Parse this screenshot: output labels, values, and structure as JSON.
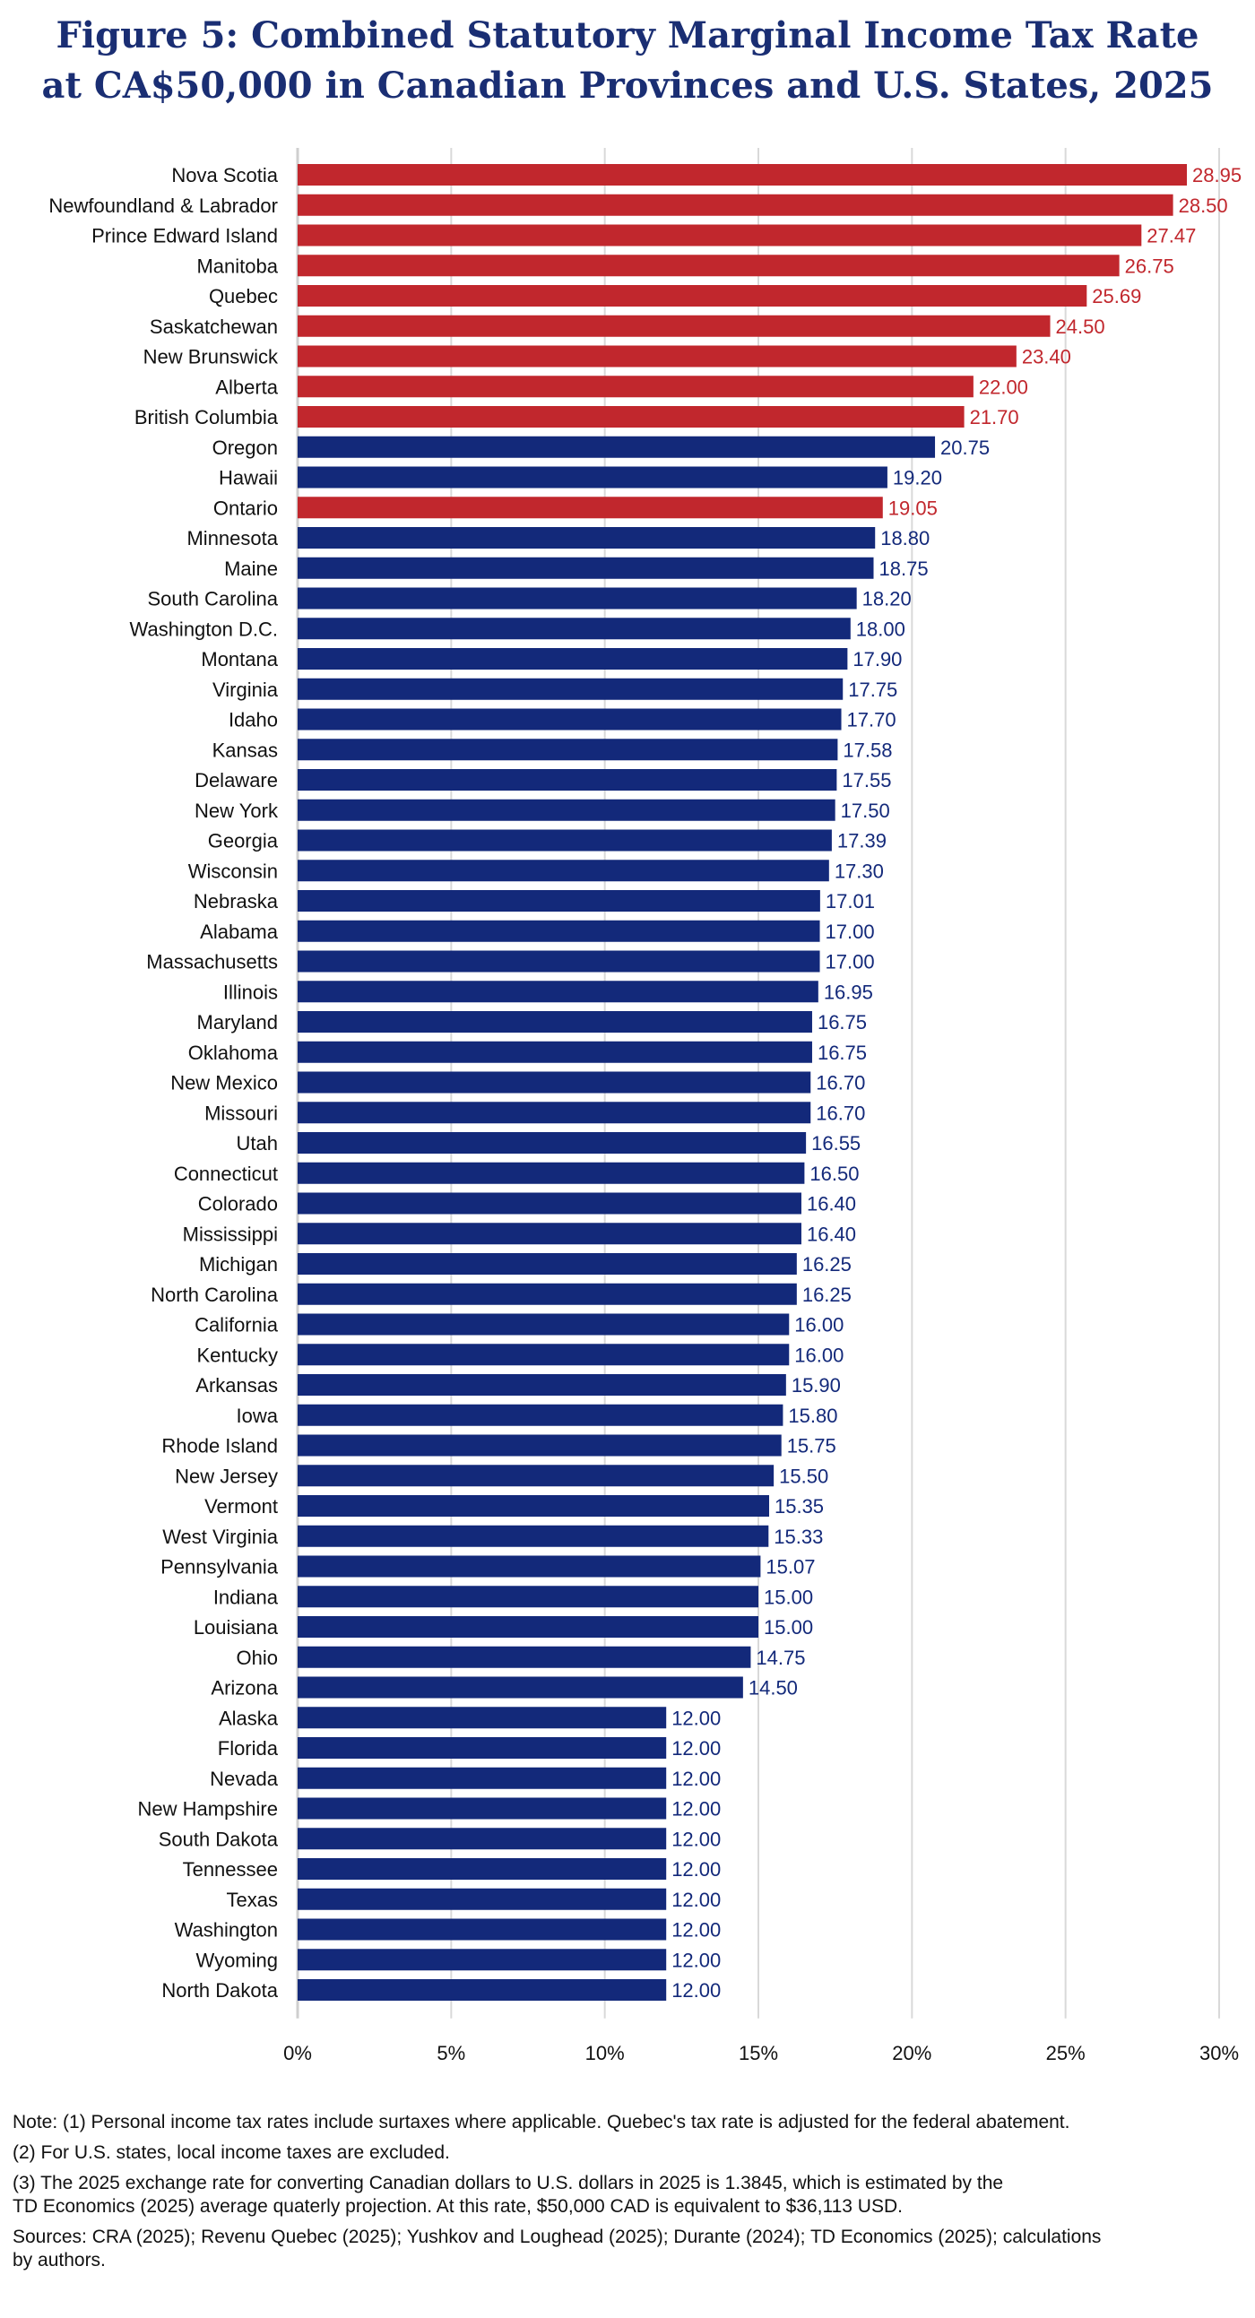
{
  "title_line1": "Figure 5: Combined Statutory Marginal Income Tax Rate",
  "title_line2": "at CA$50,000 in Canadian Provinces and U.S. States, 2025",
  "colors": {
    "canada": "#c1272d",
    "us": "#13297a",
    "title": "#1a2e73",
    "grid": "#d9d9d9"
  },
  "chart_data": {
    "type": "bar",
    "orientation": "horizontal",
    "xlim": [
      0,
      30
    ],
    "x_ticks": [
      "0%",
      "5%",
      "10%",
      "15%",
      "20%",
      "25%",
      "30%"
    ],
    "grid": true,
    "categories": [
      "Nova Scotia",
      "Newfoundland & Labrador",
      "Prince Edward Island",
      "Manitoba",
      "Quebec",
      "Saskatchewan",
      "New Brunswick",
      "Alberta",
      "British Columbia",
      "Oregon",
      "Hawaii",
      "Ontario",
      "Minnesota",
      "Maine",
      "South Carolina",
      "Washington D.C.",
      "Montana",
      "Virginia",
      "Idaho",
      "Kansas",
      "Delaware",
      "New York",
      "Georgia",
      "Wisconsin",
      "Nebraska",
      "Alabama",
      "Massachusetts",
      "Illinois",
      "Maryland",
      "Oklahoma",
      "New Mexico",
      "Missouri",
      "Utah",
      "Connecticut",
      "Colorado",
      "Mississippi",
      "Michigan",
      "North Carolina",
      "California",
      "Kentucky",
      "Arkansas",
      "Iowa",
      "Rhode Island",
      "New Jersey",
      "Vermont",
      "West Virginia",
      "Pennsylvania",
      "Indiana",
      "Louisiana",
      "Ohio",
      "Arizona",
      "Alaska",
      "Florida",
      "Nevada",
      "New Hampshire",
      "South Dakota",
      "Tennessee",
      "Texas",
      "Washington",
      "Wyoming",
      "North Dakota"
    ],
    "values": [
      28.95,
      28.5,
      27.47,
      26.75,
      25.69,
      24.5,
      23.4,
      22.0,
      21.7,
      20.75,
      19.2,
      19.05,
      18.8,
      18.75,
      18.2,
      18.0,
      17.9,
      17.75,
      17.7,
      17.58,
      17.55,
      17.5,
      17.39,
      17.3,
      17.01,
      17.0,
      17.0,
      16.95,
      16.75,
      16.75,
      16.7,
      16.7,
      16.55,
      16.5,
      16.4,
      16.4,
      16.25,
      16.25,
      16.0,
      16.0,
      15.9,
      15.8,
      15.75,
      15.5,
      15.35,
      15.33,
      15.07,
      15.0,
      15.0,
      14.75,
      14.5,
      12.0,
      12.0,
      12.0,
      12.0,
      12.0,
      12.0,
      12.0,
      12.0,
      12.0,
      12.0
    ],
    "value_labels": [
      "28.95",
      "28.50",
      "27.47",
      "26.75",
      "25.69",
      "24.50",
      "23.40",
      "22.00",
      "21.70",
      "20.75",
      "19.20",
      "19.05",
      "18.80",
      "18.75",
      "18.20",
      "18.00",
      "17.90",
      "17.75",
      "17.70",
      "17.58",
      "17.55",
      "17.50",
      "17.39",
      "17.30",
      "17.01",
      "17.00",
      "17.00",
      "16.95",
      "16.75",
      "16.75",
      "16.70",
      "16.70",
      "16.55",
      "16.50",
      "16.40",
      "16.40",
      "16.25",
      "16.25",
      "16.00",
      "16.00",
      "15.90",
      "15.80",
      "15.75",
      "15.50",
      "15.35",
      "15.33",
      "15.07",
      "15.00",
      "15.00",
      "14.75",
      "14.50",
      "12.00",
      "12.00",
      "12.00",
      "12.00",
      "12.00",
      "12.00",
      "12.00",
      "12.00",
      "12.00",
      "12.00"
    ],
    "is_canadian": [
      true,
      true,
      true,
      true,
      true,
      true,
      true,
      true,
      true,
      false,
      false,
      true,
      false,
      false,
      false,
      false,
      false,
      false,
      false,
      false,
      false,
      false,
      false,
      false,
      false,
      false,
      false,
      false,
      false,
      false,
      false,
      false,
      false,
      false,
      false,
      false,
      false,
      false,
      false,
      false,
      false,
      false,
      false,
      false,
      false,
      false,
      false,
      false,
      false,
      false,
      false,
      false,
      false,
      false,
      false,
      false,
      false,
      false,
      false,
      false,
      false
    ]
  },
  "notes": {
    "note1": "Note: (1) Personal income tax rates include surtaxes where applicable. Quebec's tax rate is adjusted for the federal abatement.",
    "note2": "(2) For U.S. states, local income taxes are excluded.",
    "note3": "(3) The 2025 exchange rate for converting Canadian dollars to U.S. dollars in 2025 is 1.3845, which is estimated by the\nTD Economics (2025) average quaterly  projection. At this rate, $50,000 CAD is equivalent to $36,113 USD.",
    "sources": "Sources: CRA (2025); Revenu Quebec (2025); Yushkov and Loughead (2025); Durante (2024); TD Economics (2025); calculations\n by authors."
  }
}
